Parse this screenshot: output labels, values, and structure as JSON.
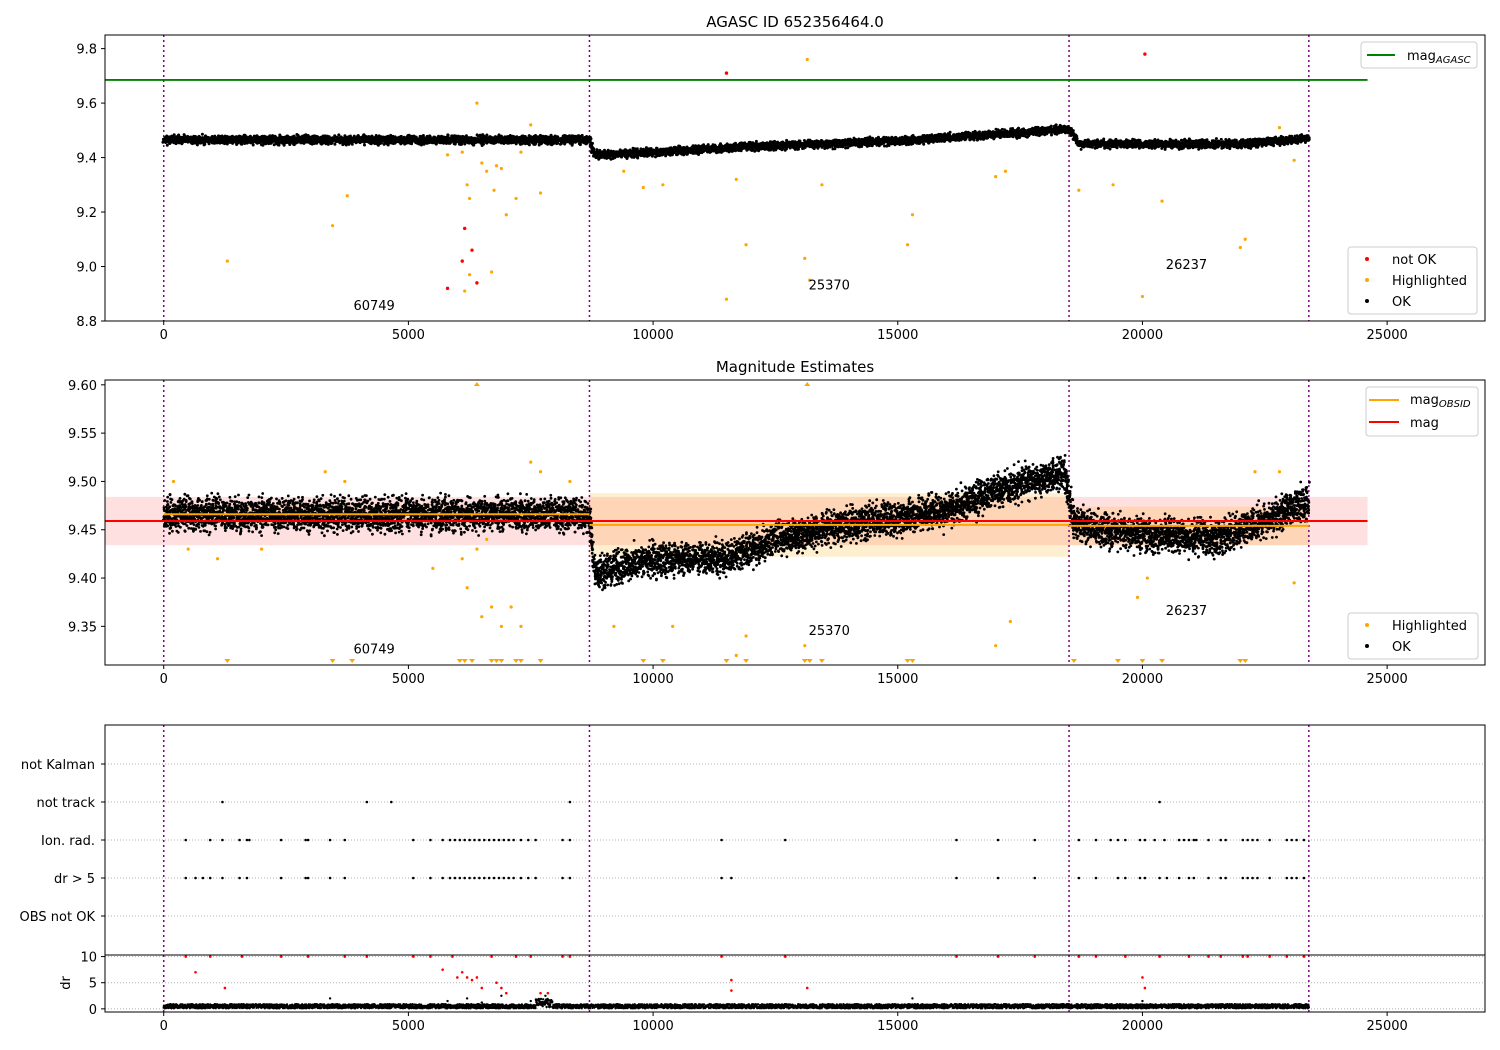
{
  "colors": {
    "ok": "#000000",
    "highlighted": "#ffa500",
    "not_ok": "#ff0000",
    "agasc_line": "#008000",
    "obsid_line": "#ffa500",
    "mag_line": "#ff0000",
    "obsid_boundary": "#800080"
  },
  "chart_data": [
    {
      "type": "scatter",
      "title": "AGASC ID 652356464.0",
      "xlim": [
        -1200,
        27000
      ],
      "ylim": [
        8.8,
        9.85
      ],
      "x_ticks": [
        "0",
        "5000",
        "10000",
        "15000",
        "20000",
        "25000"
      ],
      "y_ticks": [
        "8.8",
        "9.0",
        "9.2",
        "9.4",
        "9.6",
        "9.8"
      ],
      "grid": false,
      "legend_upper": {
        "placement": "top-right",
        "entries": [
          {
            "label": "mag",
            "subscript": "AGASC",
            "kind": "line",
            "color": "#008000"
          }
        ]
      },
      "legend_lower": {
        "placement": "bottom-right",
        "entries": [
          {
            "label": "not OK",
            "kind": "dot",
            "color": "#ff0000"
          },
          {
            "label": "Highlighted",
            "kind": "dot",
            "color": "#ffa500"
          },
          {
            "label": "OK",
            "kind": "dot",
            "color": "#000000"
          }
        ]
      },
      "reference_lines": [
        {
          "name": "mag_AGASC",
          "y": 9.685,
          "x_range": [
            -1200,
            24600
          ]
        }
      ],
      "obsid_boundaries": [
        0,
        8700,
        18500,
        23400
      ],
      "obsid_labels": [
        {
          "text": "60749",
          "x": 4300,
          "y": 8.84
        },
        {
          "text": "25370",
          "x": 13600,
          "y": 8.915
        },
        {
          "text": "26237",
          "x": 20900,
          "y": 8.99
        }
      ],
      "ok_trend": [
        [
          0,
          9.465
        ],
        [
          8700,
          9.465
        ],
        [
          8800,
          9.41
        ],
        [
          10000,
          9.42
        ],
        [
          12000,
          9.44
        ],
        [
          15000,
          9.46
        ],
        [
          17000,
          9.485
        ],
        [
          18500,
          9.505
        ],
        [
          18700,
          9.45
        ],
        [
          22000,
          9.45
        ],
        [
          23400,
          9.47
        ]
      ],
      "ok_spread": 0.012,
      "highlighted_points": [
        [
          1300,
          9.02
        ],
        [
          3450,
          9.15
        ],
        [
          3750,
          9.26
        ],
        [
          5800,
          9.41
        ],
        [
          6100,
          9.42
        ],
        [
          6200,
          9.3
        ],
        [
          6250,
          9.25
        ],
        [
          6400,
          9.6
        ],
        [
          6500,
          9.38
        ],
        [
          6600,
          9.35
        ],
        [
          6750,
          9.28
        ],
        [
          6800,
          9.37
        ],
        [
          6900,
          9.36
        ],
        [
          7000,
          9.19
        ],
        [
          7200,
          9.25
        ],
        [
          7300,
          9.42
        ],
        [
          7500,
          9.52
        ],
        [
          7700,
          9.27
        ],
        [
          6150,
          8.91
        ],
        [
          6250,
          8.97
        ],
        [
          6700,
          8.98
        ],
        [
          9400,
          9.35
        ],
        [
          9800,
          9.29
        ],
        [
          10200,
          9.3
        ],
        [
          11500,
          8.88
        ],
        [
          11700,
          9.32
        ],
        [
          11900,
          9.08
        ],
        [
          13100,
          9.03
        ],
        [
          13150,
          9.76
        ],
        [
          13200,
          8.95
        ],
        [
          13450,
          9.3
        ],
        [
          15200,
          9.08
        ],
        [
          15300,
          9.19
        ],
        [
          17000,
          9.33
        ],
        [
          17200,
          9.35
        ],
        [
          18700,
          9.28
        ],
        [
          19400,
          9.3
        ],
        [
          20000,
          8.89
        ],
        [
          20400,
          9.24
        ],
        [
          22000,
          9.07
        ],
        [
          22100,
          9.1
        ],
        [
          22800,
          9.51
        ],
        [
          23100,
          9.39
        ]
      ],
      "not_ok_points": [
        [
          5800,
          8.92
        ],
        [
          6100,
          9.02
        ],
        [
          6150,
          9.14
        ],
        [
          6300,
          9.06
        ],
        [
          6400,
          8.94
        ],
        [
          11500,
          9.71
        ],
        [
          20050,
          9.78
        ]
      ]
    },
    {
      "type": "scatter",
      "title": "Magnitude Estimates",
      "xlim": [
        -1200,
        27000
      ],
      "ylim": [
        9.31,
        9.605
      ],
      "x_ticks": [
        "0",
        "5000",
        "10000",
        "15000",
        "20000",
        "25000"
      ],
      "y_ticks": [
        "9.35",
        "9.40",
        "9.45",
        "9.50",
        "9.55",
        "9.60"
      ],
      "grid": false,
      "legend_upper": {
        "placement": "top-right",
        "entries": [
          {
            "label": "mag",
            "subscript": "OBSID",
            "kind": "line",
            "color": "#ffa500"
          },
          {
            "label": "mag",
            "subscript": "",
            "kind": "line",
            "color": "#ff0000"
          }
        ]
      },
      "legend_lower": {
        "placement": "bottom-right",
        "entries": [
          {
            "label": "Highlighted",
            "kind": "dot",
            "color": "#ffa500"
          },
          {
            "label": "OK",
            "kind": "dot",
            "color": "#000000"
          }
        ]
      },
      "mag_line": {
        "y": 9.459,
        "band": [
          9.434,
          9.484
        ],
        "x_range": [
          -1200,
          24600
        ]
      },
      "obsid_mags": [
        {
          "x_range": [
            0,
            8700
          ],
          "y": 9.466,
          "band": [
            9.456,
            9.476
          ]
        },
        {
          "x_range": [
            8700,
            18500
          ],
          "y": 9.455,
          "band": [
            9.422,
            9.488
          ]
        },
        {
          "x_range": [
            18500,
            23400
          ],
          "y": 9.454,
          "band": [
            9.434,
            9.474
          ]
        }
      ],
      "obsid_boundaries": [
        0,
        8700,
        18500,
        23400
      ],
      "obsid_labels": [
        {
          "text": "60749",
          "x": 4300,
          "y": 9.322
        },
        {
          "text": "25370",
          "x": 13600,
          "y": 9.341
        },
        {
          "text": "26237",
          "x": 20900,
          "y": 9.362
        }
      ],
      "ok_trend": [
        [
          0,
          9.466
        ],
        [
          8700,
          9.466
        ],
        [
          8800,
          9.405
        ],
        [
          10000,
          9.42
        ],
        [
          11500,
          9.42
        ],
        [
          12500,
          9.44
        ],
        [
          14000,
          9.455
        ],
        [
          16000,
          9.47
        ],
        [
          17000,
          9.49
        ],
        [
          18400,
          9.51
        ],
        [
          18600,
          9.455
        ],
        [
          20000,
          9.445
        ],
        [
          21500,
          9.44
        ],
        [
          22500,
          9.46
        ],
        [
          23400,
          9.48
        ]
      ],
      "ok_spread": 0.014,
      "highlighted_points": [
        [
          200,
          9.5
        ],
        [
          500,
          9.43
        ],
        [
          1100,
          9.42
        ],
        [
          2000,
          9.43
        ],
        [
          3300,
          9.51
        ],
        [
          3700,
          9.5
        ],
        [
          4900,
          9.46
        ],
        [
          5500,
          9.41
        ],
        [
          6100,
          9.42
        ],
        [
          6200,
          9.39
        ],
        [
          6400,
          9.43
        ],
        [
          6500,
          9.36
        ],
        [
          6600,
          9.44
        ],
        [
          6700,
          9.37
        ],
        [
          6900,
          9.35
        ],
        [
          7100,
          9.37
        ],
        [
          7300,
          9.35
        ],
        [
          7500,
          9.52
        ],
        [
          7700,
          9.51
        ],
        [
          8300,
          9.5
        ],
        [
          9200,
          9.35
        ],
        [
          10400,
          9.35
        ],
        [
          11700,
          9.32
        ],
        [
          11900,
          9.34
        ],
        [
          13100,
          9.33
        ],
        [
          17000,
          9.33
        ],
        [
          17300,
          9.355
        ],
        [
          19900,
          9.38
        ],
        [
          20100,
          9.4
        ],
        [
          22300,
          9.51
        ],
        [
          22800,
          9.51
        ],
        [
          23100,
          9.395
        ]
      ],
      "clipped_low_x": [
        1300,
        3450,
        3850,
        6050,
        6150,
        6300,
        6700,
        6800,
        6900,
        7200,
        7300,
        7700,
        9800,
        10200,
        11500,
        11900,
        13100,
        13200,
        13450,
        15200,
        15300,
        18600,
        19500,
        20000,
        20400,
        22000,
        22100
      ],
      "clipped_high_x": [
        6400,
        13150
      ]
    },
    {
      "type": "scatter",
      "title": "",
      "xlim": [
        -1200,
        27000
      ],
      "categories": [
        "not Kalman",
        "not track",
        "Ion. rad.",
        "dr > 5",
        "OBS not OK"
      ],
      "grid": true,
      "flags": {
        "not track": [
          1200,
          4150,
          4650,
          8300,
          20350
        ],
        "Ion. rad.": [
          450,
          950,
          1200,
          1550,
          1700,
          1750,
          2400,
          2900,
          2950,
          3400,
          3700,
          5100,
          5450,
          5700,
          5850,
          5950,
          6050,
          6150,
          6250,
          6350,
          6450,
          6550,
          6650,
          6750,
          6850,
          6950,
          7050,
          7150,
          7300,
          7450,
          7600,
          8150,
          8300,
          11400,
          12700,
          16200,
          17050,
          17800,
          18700,
          19050,
          19350,
          19500,
          19650,
          19950,
          20050,
          20250,
          20450,
          20750,
          20850,
          20950,
          21050,
          21100,
          21350,
          21600,
          21700,
          22050,
          22150,
          22250,
          22350,
          22600,
          22950,
          23050,
          23150,
          23300
        ],
        "dr > 5": [
          450,
          650,
          800,
          950,
          1200,
          1550,
          1700,
          2400,
          2900,
          2950,
          3400,
          3700,
          5100,
          5450,
          5700,
          5850,
          5950,
          6050,
          6150,
          6250,
          6350,
          6450,
          6550,
          6650,
          6750,
          6850,
          6950,
          7050,
          7150,
          7300,
          7450,
          7600,
          8150,
          8300,
          11400,
          11600,
          16200,
          17050,
          17800,
          18700,
          19050,
          19500,
          19650,
          19950,
          20050,
          20350,
          20500,
          20750,
          20950,
          21050,
          21350,
          21600,
          21700,
          22050,
          22150,
          22250,
          22350,
          22600,
          22950,
          23050,
          23150,
          23300
        ]
      },
      "obsid_boundaries": [
        0,
        8700,
        18500,
        23400
      ]
    },
    {
      "type": "scatter",
      "title": "",
      "ylabel": "dr",
      "xlim": [
        -1200,
        27000
      ],
      "ylim": [
        -0.6,
        10.3
      ],
      "x_ticks": [
        "0",
        "5000",
        "10000",
        "15000",
        "20000",
        "25000"
      ],
      "y_ticks": [
        "0",
        "5",
        "10"
      ],
      "grid": true,
      "ok_baseline": 0.5,
      "ok_spread": 0.4,
      "dr_red_points": [
        [
          450,
          10
        ],
        [
          650,
          7
        ],
        [
          950,
          10
        ],
        [
          1250,
          4
        ],
        [
          1600,
          10
        ],
        [
          2400,
          10
        ],
        [
          2950,
          10
        ],
        [
          3700,
          10
        ],
        [
          4150,
          10
        ],
        [
          5100,
          10
        ],
        [
          5450,
          10
        ],
        [
          5700,
          7.5
        ],
        [
          5900,
          10
        ],
        [
          6000,
          6
        ],
        [
          6100,
          7
        ],
        [
          6200,
          6
        ],
        [
          6300,
          5.5
        ],
        [
          6400,
          6
        ],
        [
          6500,
          4
        ],
        [
          6700,
          10
        ],
        [
          6800,
          5
        ],
        [
          6900,
          4
        ],
        [
          7000,
          3
        ],
        [
          7200,
          10
        ],
        [
          7500,
          10
        ],
        [
          7700,
          3
        ],
        [
          7850,
          3
        ],
        [
          8150,
          10
        ],
        [
          8300,
          10
        ],
        [
          11400,
          10
        ],
        [
          11600,
          5.5
        ],
        [
          11600,
          3.5
        ],
        [
          12700,
          10
        ],
        [
          13150,
          4
        ],
        [
          16200,
          10
        ],
        [
          17050,
          10
        ],
        [
          17800,
          10
        ],
        [
          18700,
          10
        ],
        [
          19050,
          10
        ],
        [
          19650,
          10
        ],
        [
          20000,
          6
        ],
        [
          20050,
          4
        ],
        [
          20350,
          10
        ],
        [
          20950,
          10
        ],
        [
          21350,
          10
        ],
        [
          21600,
          10
        ],
        [
          22050,
          10
        ],
        [
          22150,
          10
        ],
        [
          22600,
          10
        ],
        [
          22950,
          10
        ],
        [
          23300,
          10
        ]
      ],
      "dr_black_points": [
        [
          3400,
          2
        ],
        [
          5800,
          1.5
        ],
        [
          6200,
          2
        ],
        [
          6500,
          1.2
        ],
        [
          6900,
          2.5
        ],
        [
          7500,
          1.5
        ],
        [
          7800,
          2.5
        ],
        [
          15300,
          2
        ],
        [
          20000,
          1.5
        ]
      ],
      "obsid_boundaries": [
        0,
        8700,
        18500,
        23400
      ]
    }
  ]
}
